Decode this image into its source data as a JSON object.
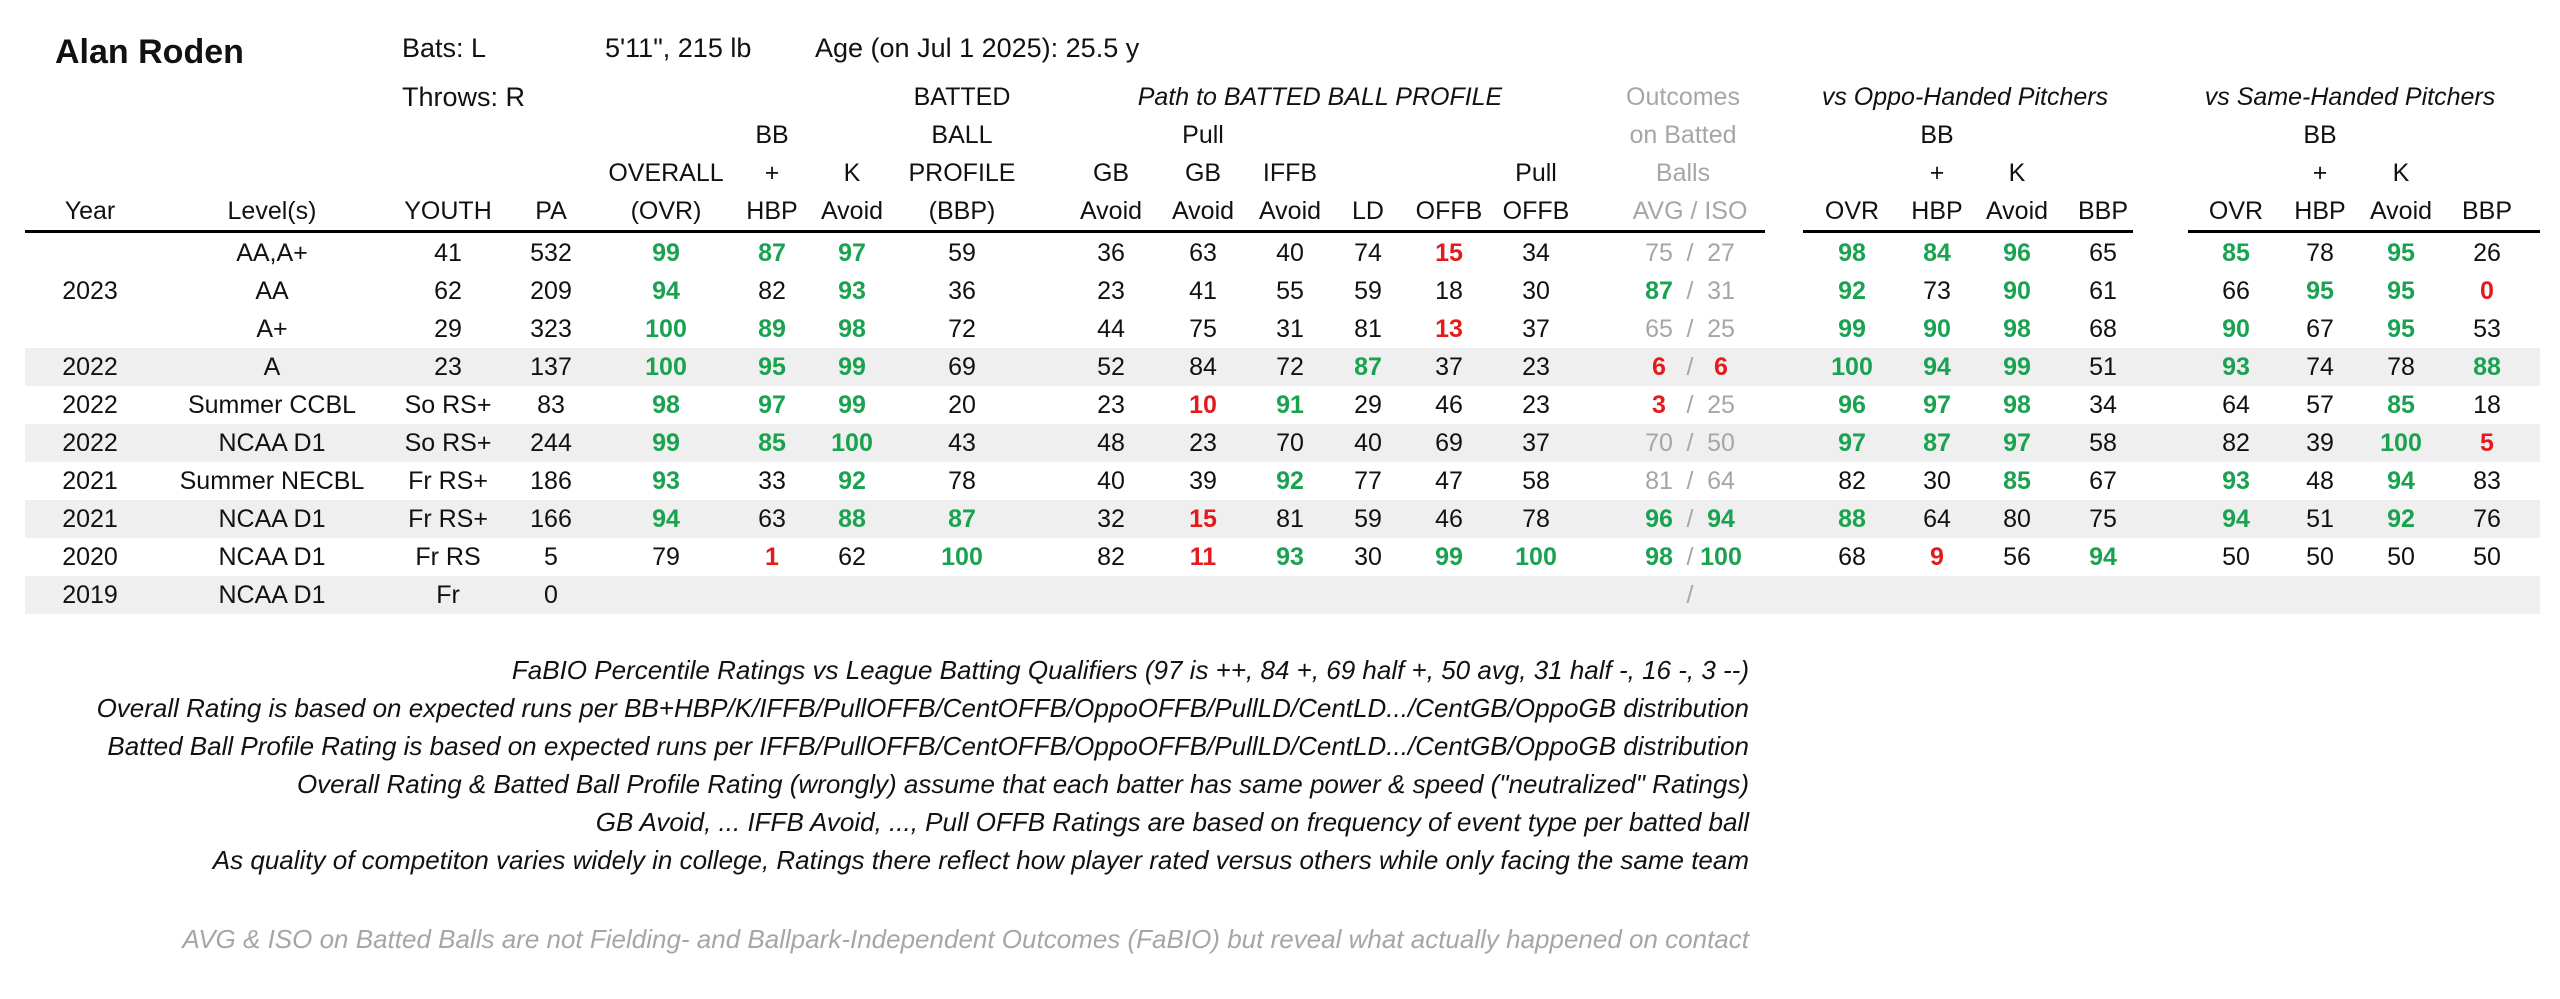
{
  "player": {
    "name": "Alan Roden",
    "bats": "Bats: L",
    "throws": "Throws: R",
    "size": "5'11\", 215 lb",
    "age": "Age (on Jul 1 2025): 25.5 y"
  },
  "group_headers": {
    "path": "Path to BATTED BALL PROFILE",
    "outcomes": [
      "Outcomes",
      "on Batted",
      "Balls"
    ],
    "oppo": "vs Oppo-Handed Pitchers",
    "same": "vs Same-Handed Pitchers"
  },
  "col_headers": {
    "year": "Year",
    "level": "Level(s)",
    "youth": "YOUTH",
    "pa": "PA",
    "ovr": [
      "OVERALL",
      "(OVR)"
    ],
    "bb": [
      "BB",
      "+",
      "HBP"
    ],
    "k": [
      "K",
      "Avoid"
    ],
    "bbp": [
      "BATTED",
      "BALL",
      "PROFILE",
      "(BBP)"
    ],
    "gb": [
      "GB",
      "Avoid"
    ],
    "pullgb": [
      "Pull",
      "GB",
      "Avoid"
    ],
    "iffb": [
      "IFFB",
      "Avoid"
    ],
    "ld": "LD",
    "offb": "OFFB",
    "pulloffb": [
      "Pull",
      "OFFB"
    ],
    "avgiso": "AVG / ISO",
    "split_ovr": "OVR",
    "split_bb": [
      "BB",
      "+",
      "HBP"
    ],
    "split_k": [
      "K",
      "Avoid"
    ],
    "split_bbp": "BBP"
  },
  "rows": [
    {
      "year": "",
      "level": "AA,A+",
      "youth": "41",
      "pa": "532",
      "ovr": "99",
      "bb": "87",
      "k": "97",
      "bbp": "59",
      "gb": "36",
      "pullgb": "63",
      "iffb": "40",
      "ld": "74",
      "offb": "15",
      "pulloffb": "34",
      "avg": "75",
      "iso": "27",
      "o_ovr": "98",
      "o_bb": "84",
      "o_k": "96",
      "o_bbp": "65",
      "s_ovr": "85",
      "s_bb": "78",
      "s_k": "95",
      "s_bbp": "26",
      "c": {
        "ovr": "g",
        "bb": "g",
        "k": "g",
        "offb": "r",
        "avg": "m",
        "iso": "m",
        "o_ovr": "g",
        "o_bb": "g",
        "o_k": "g",
        "s_ovr": "g",
        "s_k": "g"
      }
    },
    {
      "year": "2023",
      "level": "AA",
      "youth": "62",
      "pa": "209",
      "ovr": "94",
      "bb": "82",
      "k": "93",
      "bbp": "36",
      "gb": "23",
      "pullgb": "41",
      "iffb": "55",
      "ld": "59",
      "offb": "18",
      "pulloffb": "30",
      "avg": "87",
      "iso": "31",
      "o_ovr": "92",
      "o_bb": "73",
      "o_k": "90",
      "o_bbp": "61",
      "s_ovr": "66",
      "s_bb": "95",
      "s_k": "95",
      "s_bbp": "0",
      "c": {
        "ovr": "g",
        "k": "g",
        "avg": "g",
        "iso": "m",
        "o_ovr": "g",
        "o_k": "g",
        "s_bb": "g",
        "s_k": "g",
        "s_bbp": "r"
      }
    },
    {
      "year": "",
      "level": "A+",
      "youth": "29",
      "pa": "323",
      "ovr": "100",
      "bb": "89",
      "k": "98",
      "bbp": "72",
      "gb": "44",
      "pullgb": "75",
      "iffb": "31",
      "ld": "81",
      "offb": "13",
      "pulloffb": "37",
      "avg": "65",
      "iso": "25",
      "o_ovr": "99",
      "o_bb": "90",
      "o_k": "98",
      "o_bbp": "68",
      "s_ovr": "90",
      "s_bb": "67",
      "s_k": "95",
      "s_bbp": "53",
      "c": {
        "ovr": "g",
        "bb": "g",
        "k": "g",
        "offb": "r",
        "avg": "m",
        "iso": "m",
        "o_ovr": "g",
        "o_bb": "g",
        "o_k": "g",
        "s_ovr": "g",
        "s_k": "g"
      }
    },
    {
      "year": "2022",
      "level": "A",
      "youth": "23",
      "pa": "137",
      "ovr": "100",
      "bb": "95",
      "k": "99",
      "bbp": "69",
      "gb": "52",
      "pullgb": "84",
      "iffb": "72",
      "ld": "87",
      "offb": "37",
      "pulloffb": "23",
      "avg": "6",
      "iso": "6",
      "o_ovr": "100",
      "o_bb": "94",
      "o_k": "99",
      "o_bbp": "51",
      "s_ovr": "93",
      "s_bb": "74",
      "s_k": "78",
      "s_bbp": "88",
      "c": {
        "ovr": "g",
        "bb": "g",
        "k": "g",
        "ld": "g",
        "avg": "r",
        "iso": "r",
        "o_ovr": "g",
        "o_bb": "g",
        "o_k": "g",
        "s_ovr": "g",
        "s_bbp": "g"
      }
    },
    {
      "year": "2022",
      "level": "Summer CCBL",
      "youth": "So RS+",
      "pa": "83",
      "ovr": "98",
      "bb": "97",
      "k": "99",
      "bbp": "20",
      "gb": "23",
      "pullgb": "10",
      "iffb": "91",
      "ld": "29",
      "offb": "46",
      "pulloffb": "23",
      "avg": "3",
      "iso": "25",
      "o_ovr": "96",
      "o_bb": "97",
      "o_k": "98",
      "o_bbp": "34",
      "s_ovr": "64",
      "s_bb": "57",
      "s_k": "85",
      "s_bbp": "18",
      "c": {
        "ovr": "g",
        "bb": "g",
        "k": "g",
        "pullgb": "r",
        "iffb": "g",
        "avg": "r",
        "iso": "m",
        "o_ovr": "g",
        "o_bb": "g",
        "o_k": "g",
        "s_k": "g"
      }
    },
    {
      "year": "2022",
      "level": "NCAA D1",
      "youth": "So RS+",
      "pa": "244",
      "ovr": "99",
      "bb": "85",
      "k": "100",
      "bbp": "43",
      "gb": "48",
      "pullgb": "23",
      "iffb": "70",
      "ld": "40",
      "offb": "69",
      "pulloffb": "37",
      "avg": "70",
      "iso": "50",
      "o_ovr": "97",
      "o_bb": "87",
      "o_k": "97",
      "o_bbp": "58",
      "s_ovr": "82",
      "s_bb": "39",
      "s_k": "100",
      "s_bbp": "5",
      "c": {
        "ovr": "g",
        "bb": "g",
        "k": "g",
        "avg": "m",
        "iso": "m",
        "o_ovr": "g",
        "o_bb": "g",
        "o_k": "g",
        "s_k": "g",
        "s_bbp": "r"
      }
    },
    {
      "year": "2021",
      "level": "Summer NECBL",
      "youth": "Fr RS+",
      "pa": "186",
      "ovr": "93",
      "bb": "33",
      "k": "92",
      "bbp": "78",
      "gb": "40",
      "pullgb": "39",
      "iffb": "92",
      "ld": "77",
      "offb": "47",
      "pulloffb": "58",
      "avg": "81",
      "iso": "64",
      "o_ovr": "82",
      "o_bb": "30",
      "o_k": "85",
      "o_bbp": "67",
      "s_ovr": "93",
      "s_bb": "48",
      "s_k": "94",
      "s_bbp": "83",
      "c": {
        "ovr": "g",
        "k": "g",
        "iffb": "g",
        "avg": "m",
        "iso": "m",
        "o_k": "g",
        "s_ovr": "g",
        "s_k": "g"
      }
    },
    {
      "year": "2021",
      "level": "NCAA D1",
      "youth": "Fr RS+",
      "pa": "166",
      "ovr": "94",
      "bb": "63",
      "k": "88",
      "bbp": "87",
      "gb": "32",
      "pullgb": "15",
      "iffb": "81",
      "ld": "59",
      "offb": "46",
      "pulloffb": "78",
      "avg": "96",
      "iso": "94",
      "o_ovr": "88",
      "o_bb": "64",
      "o_k": "80",
      "o_bbp": "75",
      "s_ovr": "94",
      "s_bb": "51",
      "s_k": "92",
      "s_bbp": "76",
      "c": {
        "ovr": "g",
        "k": "g",
        "bbp": "g",
        "pullgb": "r",
        "avg": "g",
        "iso": "g",
        "o_ovr": "g",
        "s_ovr": "g",
        "s_k": "g"
      }
    },
    {
      "year": "2020",
      "level": "NCAA D1",
      "youth": "Fr RS",
      "pa": "5",
      "ovr": "79",
      "bb": "1",
      "k": "62",
      "bbp": "100",
      "gb": "82",
      "pullgb": "11",
      "iffb": "93",
      "ld": "30",
      "offb": "99",
      "pulloffb": "100",
      "avg": "98",
      "iso": "100",
      "o_ovr": "68",
      "o_bb": "9",
      "o_k": "56",
      "o_bbp": "94",
      "s_ovr": "50",
      "s_bb": "50",
      "s_k": "50",
      "s_bbp": "50",
      "c": {
        "bb": "r",
        "bbp": "g",
        "pullgb": "r",
        "iffb": "g",
        "offb": "g",
        "pulloffb": "g",
        "avg": "g",
        "iso": "g",
        "o_bb": "r",
        "o_bbp": "g"
      }
    },
    {
      "year": "2019",
      "level": "NCAA D1",
      "youth": "Fr",
      "pa": "0",
      "ovr": "",
      "bb": "",
      "k": "",
      "bbp": "",
      "gb": "",
      "pullgb": "",
      "iffb": "",
      "ld": "",
      "offb": "",
      "pulloffb": "",
      "avg": "",
      "iso": "",
      "o_ovr": "",
      "o_bb": "",
      "o_k": "",
      "o_bbp": "",
      "s_ovr": "",
      "s_bb": "",
      "s_k": "",
      "s_bbp": "",
      "c": {}
    }
  ],
  "notes": [
    "FaBIO Percentile Ratings vs League Batting Qualifiers (97 is ++, 84 +, 69 half +, 50 avg, 31 half -, 16 -, 3 --)",
    "Overall Rating is based on expected runs per BB+HBP/K/IFFB/PullOFFB/CentOFFB/OppoOFFB/PullLD/CentLD.../CentGB/OppoGB distribution",
    "Batted Ball Profile Rating is based on expected runs per IFFB/PullOFFB/CentOFFB/OppoOFFB/PullLD/CentLD.../CentGB/OppoGB distribution",
    "Overall Rating & Batted Ball Profile Rating (wrongly) assume that each batter has same power & speed (\"neutralized\" Ratings)",
    "GB Avoid, ... IFFB Avoid, ..., Pull OFFB Ratings are based on frequency of event type per batted ball",
    "As quality of competiton varies widely in college, Ratings there reflect how player rated versus others while only facing the same team"
  ],
  "footnote": "AVG & ISO on Batted Balls are not Fielding- and Ballpark-Independent Outcomes (FaBIO) but reveal what actually happened on contact",
  "colors": {
    "good": "#1aa251",
    "bad": "#e41a1c",
    "muted": "#a6a6a6",
    "shade": "#efefef"
  }
}
